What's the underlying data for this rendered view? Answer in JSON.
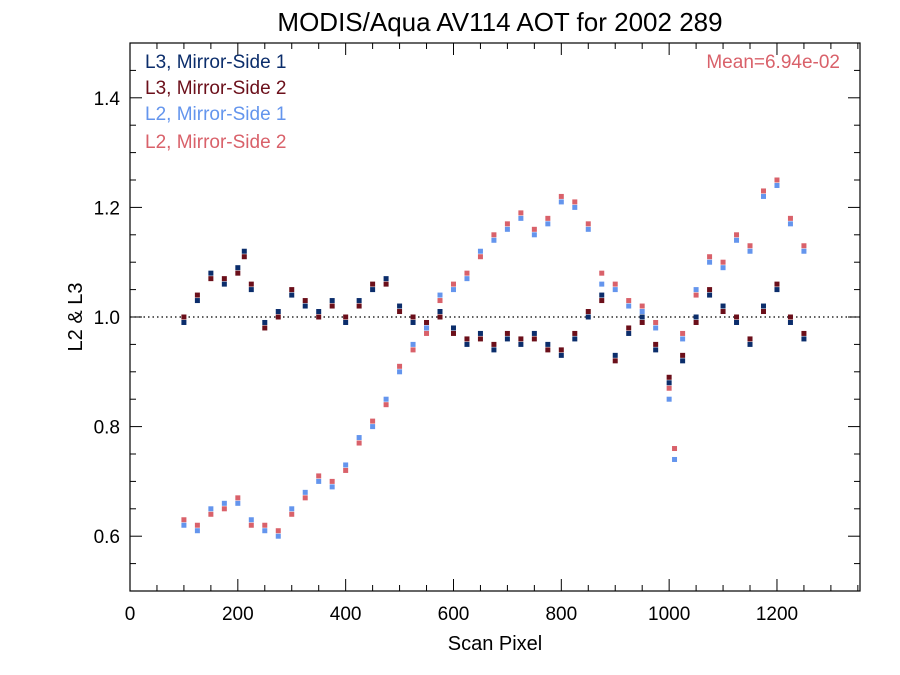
{
  "chart_data": {
    "type": "scatter",
    "title": "MODIS/Aqua AV114 AOT for 2002 289",
    "xlabel": "Scan Pixel",
    "ylabel": "L2 & L3",
    "xlim": [
      0,
      1354
    ],
    "ylim": [
      0.5,
      1.5
    ],
    "x_ticks": [
      0,
      200,
      400,
      600,
      800,
      1000,
      1200
    ],
    "x_tick_labels": [
      "0",
      "200",
      "400",
      "600",
      "800",
      "1000",
      "1200"
    ],
    "y_ticks": [
      0.6,
      0.8,
      1.0,
      1.2,
      1.4
    ],
    "y_tick_labels": [
      "0.6",
      "0.8",
      "1.0",
      "1.2",
      "1.4"
    ],
    "reference_line": {
      "y": 1.0,
      "style": "dotted"
    },
    "annotation": "Mean=6.94e-02",
    "legend_position": "top-left",
    "series": [
      {
        "name": "L3, Mirror-Side 1",
        "color": "#0b2d6b",
        "x": [
          100,
          125,
          150,
          175,
          200,
          212,
          225,
          250,
          275,
          300,
          325,
          350,
          375,
          400,
          425,
          450,
          475,
          500,
          525,
          550,
          575,
          600,
          625,
          650,
          675,
          700,
          725,
          750,
          775,
          800,
          825,
          850,
          875,
          900,
          925,
          950,
          975,
          1000,
          1025,
          1050,
          1075,
          1100,
          1125,
          1150,
          1175,
          1200,
          1225,
          1250
        ],
        "y": [
          0.99,
          1.03,
          1.08,
          1.06,
          1.09,
          1.12,
          1.05,
          0.99,
          1.01,
          1.04,
          1.02,
          1.01,
          1.03,
          0.99,
          1.03,
          1.05,
          1.07,
          1.02,
          0.99,
          0.98,
          1.01,
          0.98,
          0.95,
          0.97,
          0.94,
          0.96,
          0.95,
          0.97,
          0.95,
          0.93,
          0.96,
          1.0,
          1.04,
          0.93,
          0.97,
          1.0,
          0.94,
          0.88,
          0.92,
          1.0,
          1.04,
          1.02,
          0.99,
          0.95,
          1.02,
          1.05,
          0.99,
          0.96
        ]
      },
      {
        "name": "L3, Mirror-Side 2",
        "color": "#6b0f1a",
        "x": [
          100,
          125,
          150,
          175,
          200,
          212,
          225,
          250,
          275,
          300,
          325,
          350,
          375,
          400,
          425,
          450,
          475,
          500,
          525,
          550,
          575,
          600,
          625,
          650,
          675,
          700,
          725,
          750,
          775,
          800,
          825,
          850,
          875,
          900,
          925,
          950,
          975,
          1000,
          1025,
          1050,
          1075,
          1100,
          1125,
          1150,
          1175,
          1200,
          1225,
          1250
        ],
        "y": [
          1.0,
          1.04,
          1.07,
          1.07,
          1.08,
          1.11,
          1.06,
          0.98,
          1.0,
          1.05,
          1.03,
          1.0,
          1.02,
          1.0,
          1.02,
          1.06,
          1.06,
          1.01,
          1.0,
          0.99,
          1.0,
          0.97,
          0.96,
          0.96,
          0.95,
          0.97,
          0.96,
          0.96,
          0.94,
          0.94,
          0.97,
          1.01,
          1.03,
          0.92,
          0.98,
          0.99,
          0.95,
          0.89,
          0.93,
          0.99,
          1.05,
          1.01,
          1.0,
          0.96,
          1.01,
          1.06,
          1.0,
          0.97
        ]
      },
      {
        "name": "L2, Mirror-Side 1",
        "color": "#6495ed",
        "x": [
          100,
          125,
          150,
          175,
          200,
          225,
          250,
          275,
          300,
          325,
          350,
          375,
          400,
          425,
          450,
          475,
          500,
          525,
          550,
          575,
          600,
          625,
          650,
          675,
          700,
          725,
          750,
          775,
          800,
          825,
          850,
          875,
          900,
          925,
          950,
          975,
          1000,
          1010,
          1025,
          1050,
          1075,
          1100,
          1125,
          1150,
          1175,
          1200,
          1225,
          1250
        ],
        "y": [
          0.62,
          0.61,
          0.65,
          0.66,
          0.66,
          0.63,
          0.61,
          0.6,
          0.65,
          0.68,
          0.7,
          0.69,
          0.73,
          0.78,
          0.8,
          0.85,
          0.9,
          0.95,
          0.98,
          1.04,
          1.05,
          1.07,
          1.12,
          1.14,
          1.16,
          1.18,
          1.15,
          1.17,
          1.21,
          1.2,
          1.16,
          1.06,
          1.05,
          1.02,
          1.01,
          0.98,
          0.85,
          0.74,
          0.96,
          1.05,
          1.1,
          1.09,
          1.14,
          1.12,
          1.22,
          1.24,
          1.17,
          1.12
        ]
      },
      {
        "name": "L2, Mirror-Side 2",
        "color": "#d9616a",
        "x": [
          100,
          125,
          150,
          175,
          200,
          225,
          250,
          275,
          300,
          325,
          350,
          375,
          400,
          425,
          450,
          475,
          500,
          525,
          550,
          575,
          600,
          625,
          650,
          675,
          700,
          725,
          750,
          775,
          800,
          825,
          850,
          875,
          900,
          925,
          950,
          975,
          1000,
          1010,
          1025,
          1050,
          1075,
          1100,
          1125,
          1150,
          1175,
          1200,
          1225,
          1250
        ],
        "y": [
          0.63,
          0.62,
          0.64,
          0.65,
          0.67,
          0.62,
          0.62,
          0.61,
          0.64,
          0.67,
          0.71,
          0.7,
          0.72,
          0.77,
          0.81,
          0.84,
          0.91,
          0.94,
          0.97,
          1.03,
          1.06,
          1.08,
          1.11,
          1.15,
          1.17,
          1.19,
          1.16,
          1.18,
          1.22,
          1.21,
          1.17,
          1.08,
          1.06,
          1.03,
          1.02,
          0.99,
          0.87,
          0.76,
          0.97,
          1.04,
          1.11,
          1.1,
          1.15,
          1.13,
          1.23,
          1.25,
          1.18,
          1.13
        ]
      }
    ]
  }
}
